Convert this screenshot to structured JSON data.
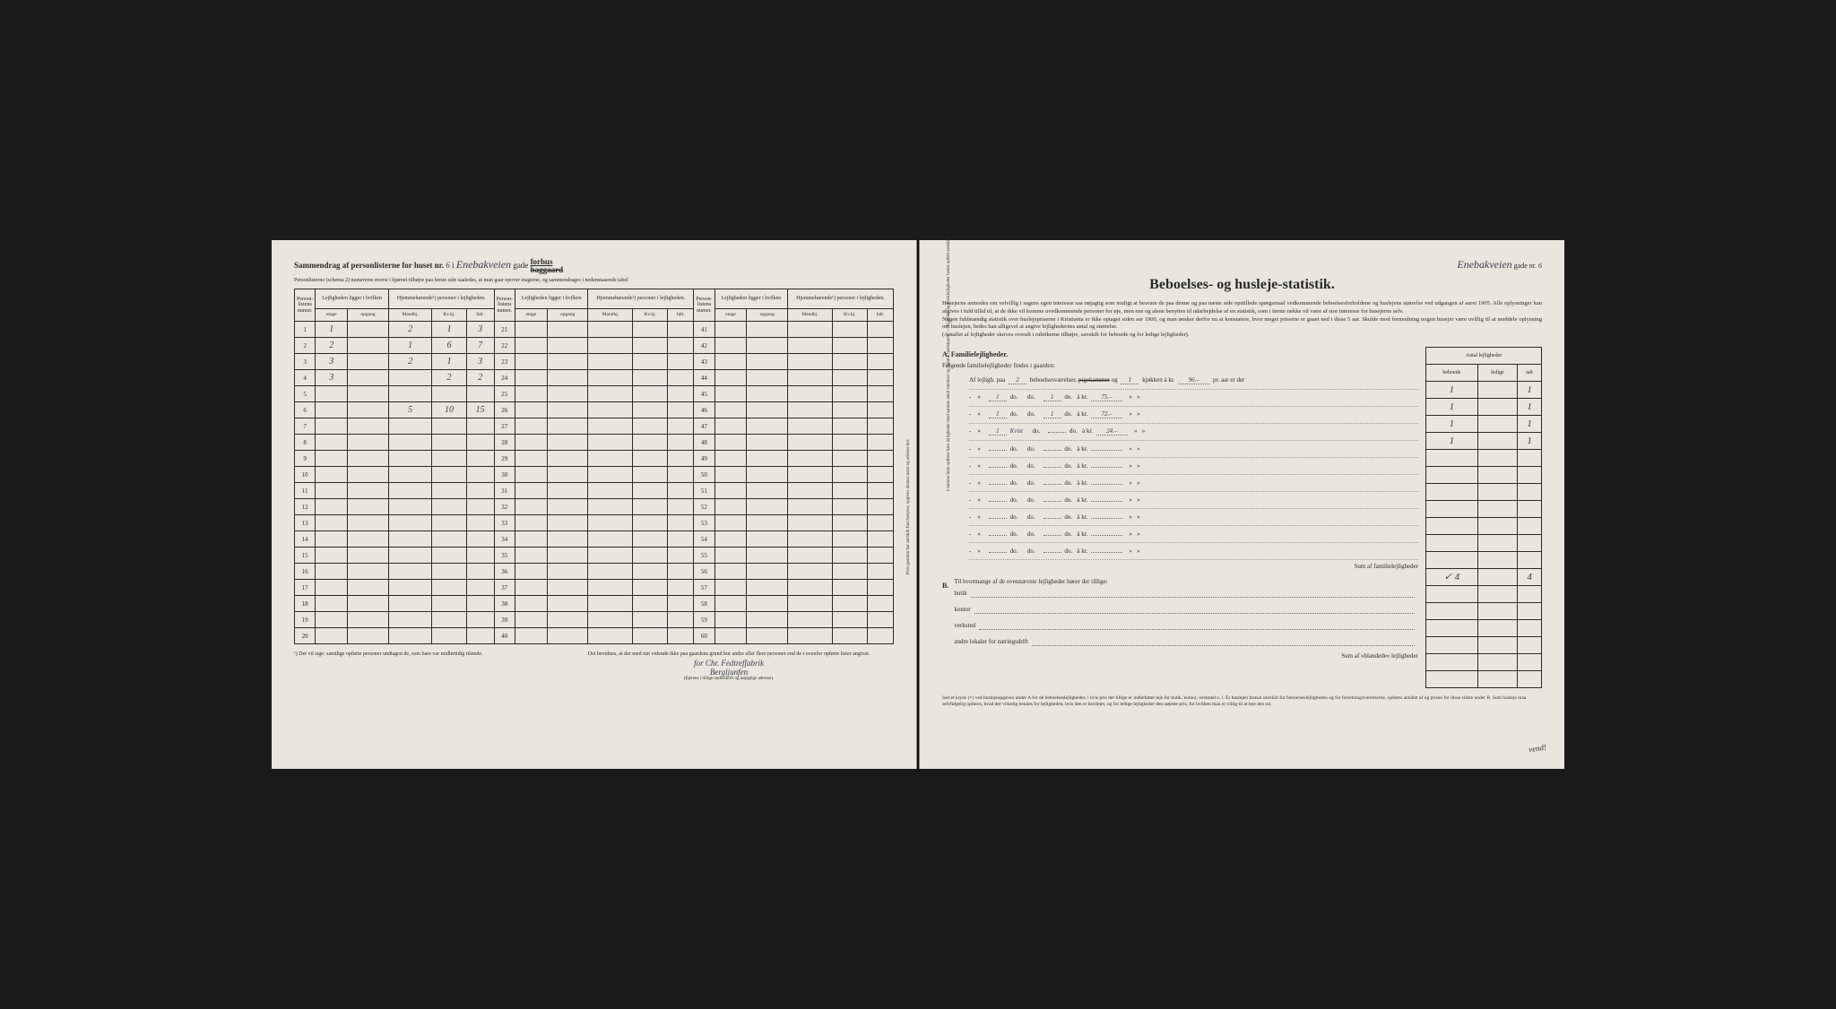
{
  "background_color": "#1a1a1a",
  "paper_color": "#e8e6de",
  "ink_color": "#2a2a2a",
  "handwriting_color": "#3a3a4a",
  "left_page": {
    "header_prefix": "Sammendrag af personlisterne for huset nr.",
    "house_nr": "6",
    "header_i": "i",
    "street_name": "Enebakveien",
    "header_gade": "gade",
    "forhus": "forhus",
    "baggaard": "baggaard",
    "subheader": "Personlisterne (schema 2) numereres øverst i hjørnet tilhøjre paa første side saaledes, at man gaar opover etagerne, og sammendrages i nedenstaaende tabel",
    "table": {
      "col_groups": [
        {
          "label": "Person-listens numer."
        },
        {
          "label": "Lejligheden ligger i hvilken",
          "subs": [
            "etage",
            "opgang"
          ]
        },
        {
          "label": "Hjemmehørende¹) personer i lejligheden.",
          "subs": [
            "Mandkj.",
            "Kv.kj.",
            "Ialt."
          ]
        }
      ],
      "blocks": 3,
      "rows_per_block": 20,
      "data_rows": [
        {
          "n": 1,
          "check": true,
          "etage": "1",
          "opgang": "",
          "m": "2",
          "k": "1",
          "i": "3"
        },
        {
          "n": 2,
          "check": true,
          "etage": "2",
          "opgang": "",
          "m": "1",
          "k": "6",
          "i": "7"
        },
        {
          "n": 3,
          "check": true,
          "etage": "3",
          "opgang": "",
          "m": "2",
          "k": "1",
          "i": "3"
        },
        {
          "n": 4,
          "check": true,
          "etage": "3",
          "opgang": "",
          "m": "",
          "k": "2",
          "i": "2"
        },
        {
          "n": 5,
          "check": false,
          "etage": "",
          "opgang": "",
          "m": "",
          "k": "",
          "i": ""
        },
        {
          "n": 6,
          "check": false,
          "etage": "",
          "opgang": "",
          "m": "5",
          "k": "10",
          "i": "15"
        },
        {
          "n": 7,
          "check": false,
          "etage": "",
          "opgang": "",
          "m": "",
          "k": "",
          "i": ""
        }
      ]
    },
    "footnote_left": "¹) Det vil sige: samtlige opførte personer undtagen de, som bare var midlertidig tilstede.",
    "attestation": "Det bevidnes, at der med mit vidende ikke paa gaardens grund bor andre eller flere personer end de i ovenfor opførte lister angivet.",
    "signature_for": "for",
    "signature_line1": "Chr. Fedtreffabrik",
    "signature_line2": "Bergljunfen",
    "signature_note": "(Ejerens i tillige underskrift og nøjagtige adresse).",
    "vertical_note": "Hvis gaarden har særskilt fast bestyrer, opgives dennes navn og adresse her."
  },
  "right_page": {
    "street_header_name": "Enebakveien",
    "street_header_gade": "gade nr.",
    "street_header_nr": "6",
    "title": "Beboelses- og husleje-statistik.",
    "intro_p1": "Husejerne anmodes om velvillig i sagens egen interesse saa nøjagtig som muligt at besvare de paa denne og paa næste side opstillede spørgsmaal vedkommende beboelsesforholdene og huslejens størrelse ved udgangen af aaret 1905. Alle oplysninger kan afgives i fuld tillid til, at de ikke vil komme uvedkommende personer for øje, men ene og alene benyttes til udarbejdelse af en statistik, som i første række vil være af stor interesse for husejerne selv.",
    "intro_p2": "Nogen fuldstændig statistik over huslejepriserne i Kristiania er ikke optaget siden aar 1900, og man ønsker derfor nu at konstatere, hvor meget priserne er gaaet ned i disse 5 aar. Skulde mod formodning nogen husejer være uvillig til at meddele oplysning om huslejen, bedes han alligevel at angive lejlighedernes antal og størrelse.",
    "intro_p3": "(Antallet af lejligheder skrives overalt i rubrikerne tilhøjre, særskilt for beboede og for ledige lejligheder).",
    "section_a_label": "A.  Familielejligheder.",
    "section_a_sub": "Følgende familielejligheder findes i gaarden:",
    "apt_template": {
      "prefix": "Af lejligh. paa",
      "rooms_suffix": "beboelsesværelser,",
      "pigekammer": "pigekammer",
      "og": "og",
      "kjokken": "kjøkken à kr.",
      "pr_aar": "pr. aar er der",
      "do": "do.",
      "a_kr": "à kr.",
      "dash": "-"
    },
    "apartments": [
      {
        "rooms": "2",
        "pigekammer_struck": true,
        "kjokken": "1",
        "rent": "96.–"
      },
      {
        "rooms": "1",
        "kjokken": "1",
        "rent": "75.–"
      },
      {
        "rooms": "1",
        "kjokken": "1",
        "rent": "72.–"
      },
      {
        "rooms": "1",
        "note": "Kvist",
        "rent": "24.–"
      }
    ],
    "empty_apt_rows": 7,
    "sum_a_label": "Sum af familielejligheder",
    "sum_a_beboede": "4",
    "sum_a_ialt": "4",
    "section_b_label": "B.",
    "section_b_text": "Til hvormange af de ovennævnte lejligheder hører der tillige:",
    "b_rows": [
      "butik",
      "kontor",
      "verksted",
      "andre lokaler for næringsdrift"
    ],
    "sum_b_label": "Sum af »blandede« lejligheder",
    "counts_header": {
      "main": "Antal lejligheder",
      "c1": "beboede",
      "c2": "ledige",
      "c3": "ialt"
    },
    "counts_data": [
      {
        "b": "1",
        "l": "",
        "i": "1"
      },
      {
        "b": "1",
        "l": "",
        "i": "1"
      },
      {
        "b": "1",
        "l": "",
        "i": "1"
      },
      {
        "b": "1",
        "l": "",
        "i": "1"
      }
    ],
    "vertical_note": "I samme linje opføres bare lejligheder med samme antal værelser og samme huslejepris. — Kjælder- og kvistlejligheder bedes opført særskilt.",
    "footnote": "Sæt et kryds (×) ved huslejeopgaven under A for de beboelseslejligheder, i hvis pris der tillige er indbefattet leje for butik, kontor, verksted o. l. Er huslejen fastsat særskilt for beboelseslejligheden og for forretningsværelserne, opføres antallet af og prisen for disse sidste under B. Som husleje maa selvfølgelig opføres, hvad der virkelig betales for lejligheden, hvis den er bortlejet, og for ledige lejligheder den nøjeste pris, for hvilken man er villig til at leje den ud.",
    "vend": "vend!"
  }
}
